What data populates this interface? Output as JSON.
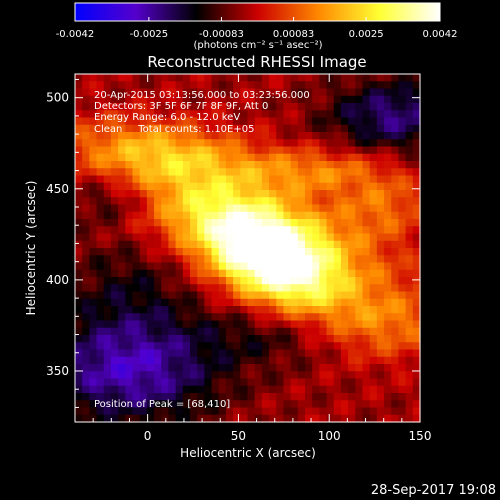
{
  "chart_data": {
    "type": "heatmap",
    "title": "Reconstructed RHESSI Image",
    "xlabel": "Heliocentric X (arcsec)",
    "ylabel": "Heliocentric Y (arcsec)",
    "xlim": [
      -40,
      150
    ],
    "ylim": [
      322,
      513
    ],
    "x_ticks": [
      0,
      50,
      100,
      150
    ],
    "y_ticks": [
      350,
      400,
      450,
      500
    ],
    "colorbar": {
      "min": -0.0042,
      "max": 0.0042,
      "ticks": [
        "-0.0042",
        "-0.0025",
        "-0.00083",
        "0.00083",
        "0.0025",
        "0.0042"
      ],
      "units": "(photons cm⁻² s⁻¹ asec⁻²)",
      "colormap": [
        "#0000ff",
        "#5500cc",
        "#000000",
        "#cc0000",
        "#ff8800",
        "#ffff33",
        "#ffffff"
      ]
    },
    "annotations": {
      "time_range": "20-Apr-2015 03:13:56.000 to 03:23:56.000",
      "detectors": "Detectors: 3F 5F 6F 7F 8F 9F, Att 0",
      "energy_range": "Energy Range: 6.0 - 12.0 keV",
      "clean_counts": "Clean     Total counts: 1.10E+05",
      "peak": "Position of Peak = [68,410]"
    },
    "peak": [
      68,
      410
    ],
    "features": [
      {
        "x": 68,
        "y": 410,
        "sx": 28,
        "sy": 16,
        "amp": 1.0,
        "rot": -0.5
      },
      {
        "x": 55,
        "y": 430,
        "sx": 55,
        "sy": 18,
        "amp": 0.62,
        "rot": -0.35
      },
      {
        "x": 10,
        "y": 470,
        "sx": 35,
        "sy": 12,
        "amp": 0.45,
        "rot": -0.1
      },
      {
        "x": 95,
        "y": 460,
        "sx": 30,
        "sy": 9,
        "amp": 0.35,
        "rot": 0.0
      },
      {
        "x": 130,
        "y": 440,
        "sx": 18,
        "sy": 12,
        "amp": 0.3,
        "rot": 0.0
      },
      {
        "x": 130,
        "y": 375,
        "sx": 25,
        "sy": 14,
        "amp": 0.32,
        "rot": 0.0
      },
      {
        "x": -10,
        "y": 395,
        "sx": 25,
        "sy": 22,
        "amp": -0.22,
        "rot": 0.0
      },
      {
        "x": -10,
        "y": 350,
        "sx": 35,
        "sy": 20,
        "amp": -0.55,
        "rot": 0.0
      },
      {
        "x": 135,
        "y": 490,
        "sx": 25,
        "sy": 14,
        "amp": -0.45,
        "rot": 0.0
      },
      {
        "x": -20,
        "y": 445,
        "sx": 18,
        "sy": 10,
        "amp": -0.28,
        "rot": 0.0
      },
      {
        "x": 70,
        "y": 370,
        "sx": 30,
        "sy": 12,
        "amp": -0.2,
        "rot": 0.0
      }
    ]
  },
  "footer": {
    "timestamp": "28-Sep-2017 19:08"
  }
}
